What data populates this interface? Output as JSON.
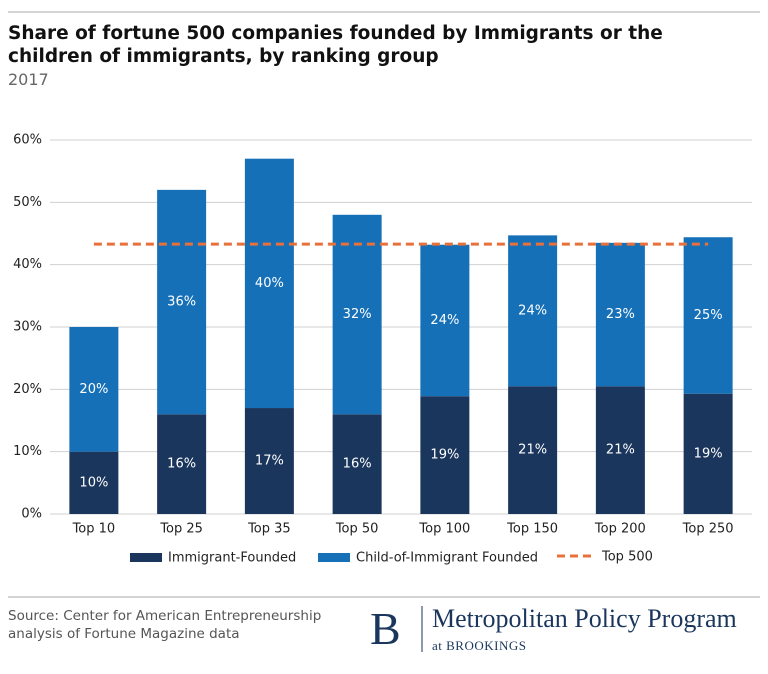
{
  "chart_data": {
    "type": "stacked_bar",
    "title": "Share of fortune 500 companies founded by Immigrants or the children of immigrants, by ranking group",
    "subtitle": "2017",
    "categories": [
      "Top 10",
      "Top 25",
      "Top 35",
      "Top 50",
      "Top 100",
      "Top 150",
      "Top 200",
      "Top 250"
    ],
    "series": [
      {
        "name": "Immigrant-Founded",
        "color": "#1b365d",
        "values": [
          10,
          16,
          17,
          16,
          18.9,
          20.5,
          20.5,
          19.3
        ],
        "value_labels": [
          "10%",
          "16%",
          "17%",
          "16%",
          "19%",
          "21%",
          "21%",
          "19%"
        ]
      },
      {
        "name": "Child-of-Immigrant Founded",
        "color": "#1570b8",
        "values": [
          20,
          36,
          40,
          32,
          24.3,
          24.2,
          23,
          25.1
        ],
        "value_labels": [
          "20%",
          "36%",
          "40%",
          "32%",
          "24%",
          "24%",
          "23%",
          "25%"
        ]
      }
    ],
    "reference_line": {
      "name": "Top 500",
      "value": 43.3,
      "color": "#e8703a"
    },
    "ylim": [
      0,
      60
    ],
    "yticks": [
      {
        "value": 0,
        "label": "0%"
      },
      {
        "value": 10,
        "label": "10%"
      },
      {
        "value": 20,
        "label": "20%"
      },
      {
        "value": 30,
        "label": "30%"
      },
      {
        "value": 40,
        "label": "40%"
      },
      {
        "value": 50,
        "label": "50%"
      },
      {
        "value": 60,
        "label": "60%"
      }
    ],
    "grid": true
  },
  "footer": {
    "source": "Source: Center for American Entrepreneurship analysis of Fortune Magazine data",
    "logo_letter": "B",
    "program": "Metropolitan Policy Program",
    "affiliation": "at BROOKINGS"
  }
}
